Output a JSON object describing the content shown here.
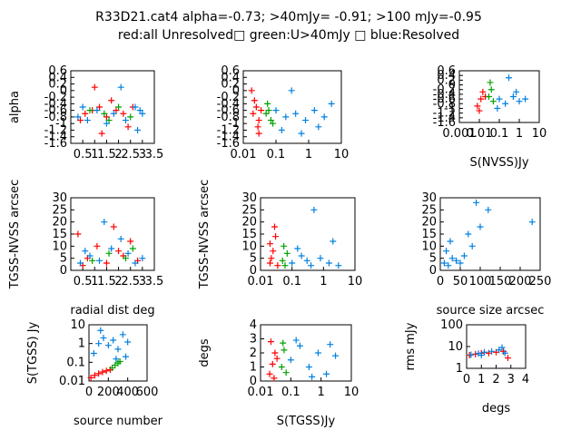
{
  "title_line1": "R33D21.cat4 alpha=-0.73; >40mJy= -0.91; >100 mJy=-0.95",
  "title_line2": "red:all Unresolved□ green:U>40mJy □ blue:Resolved",
  "colors": {
    "red": "#ff0000",
    "green": "#00a000",
    "blue": "#0080e0",
    "brown": "#a04000"
  },
  "chart_data": [
    {
      "type": "scatter",
      "ylabel": "alpha",
      "xlabel": "",
      "xlim": [
        0,
        3.5
      ],
      "ylim": [
        -1.6,
        0.6
      ],
      "xticks": [
        "0.5",
        "1",
        "1.5",
        "2",
        "2.5",
        "3",
        "3.5"
      ],
      "yticks": [
        "-1.6",
        "-1.4",
        "-1.2",
        "-1",
        "-0.8",
        "-0.6",
        "-0.4",
        "-0.2",
        "0",
        "0.2",
        "0.4",
        "0.6"
      ],
      "series": [
        {
          "color": "red",
          "points": [
            [
              0.6,
              -0.7
            ],
            [
              0.9,
              -0.6
            ],
            [
              1.2,
              -0.5
            ],
            [
              1.5,
              -0.8
            ],
            [
              1.9,
              -0.6
            ],
            [
              2.2,
              -0.7
            ],
            [
              2.6,
              -0.5
            ],
            [
              0.4,
              -0.9
            ],
            [
              1.0,
              0.1
            ],
            [
              1.7,
              -0.3
            ],
            [
              2.4,
              -1.1
            ],
            [
              1.3,
              -1.3
            ]
          ]
        },
        {
          "color": "green",
          "points": [
            [
              0.8,
              -0.6
            ],
            [
              1.4,
              -0.7
            ],
            [
              2.0,
              -0.5
            ],
            [
              2.5,
              -0.8
            ],
            [
              1.6,
              -0.9
            ]
          ]
        },
        {
          "color": "blue",
          "points": [
            [
              0.3,
              -0.8
            ],
            [
              0.7,
              -0.9
            ],
            [
              1.1,
              -0.6
            ],
            [
              1.8,
              -0.7
            ],
            [
              2.3,
              -0.9
            ],
            [
              2.7,
              -0.5
            ],
            [
              2.9,
              -0.6
            ],
            [
              2.1,
              0.1
            ],
            [
              1.5,
              -1.0
            ],
            [
              2.8,
              -1.2
            ],
            [
              0.5,
              -0.5
            ],
            [
              3.0,
              -0.7
            ]
          ]
        }
      ]
    },
    {
      "type": "scatter",
      "ylabel": "",
      "xlabel": "",
      "xlim": [
        0.01,
        10
      ],
      "ylim": [
        -1.6,
        0.6
      ],
      "xscale": "log",
      "xticks": [
        "0.01",
        "0.1",
        "1",
        "10"
      ],
      "yticks": [
        "-1.6",
        "-1.4",
        "-1.2",
        "-1",
        "-0.8",
        "-0.6",
        "-0.4",
        "-0.2",
        "0",
        "0.2",
        "0.4",
        "0.6"
      ],
      "series": [
        {
          "color": "red",
          "points": [
            [
              0.02,
              -0.7
            ],
            [
              0.025,
              -0.5
            ],
            [
              0.03,
              -0.9
            ],
            [
              0.022,
              -0.3
            ],
            [
              0.028,
              -1.1
            ],
            [
              0.035,
              -0.6
            ],
            [
              0.018,
              0.0
            ],
            [
              0.03,
              -1.3
            ]
          ]
        },
        {
          "color": "green",
          "points": [
            [
              0.05,
              -0.7
            ],
            [
              0.06,
              -0.6
            ],
            [
              0.07,
              -0.9
            ],
            [
              0.055,
              -0.4
            ],
            [
              0.08,
              -1.0
            ]
          ]
        },
        {
          "color": "blue",
          "points": [
            [
              0.1,
              -0.6
            ],
            [
              0.2,
              -0.8
            ],
            [
              0.4,
              -0.7
            ],
            [
              0.8,
              -0.9
            ],
            [
              1.5,
              -0.6
            ],
            [
              3.0,
              -0.8
            ],
            [
              0.15,
              -1.2
            ],
            [
              0.3,
              0.0
            ],
            [
              5.0,
              -0.4
            ],
            [
              0.6,
              -1.3
            ],
            [
              2.0,
              -1.1
            ]
          ]
        }
      ]
    },
    {
      "type": "scatter",
      "ylabel": "",
      "xlabel": "S(NVSS)Jy",
      "xlim": [
        0.001,
        10
      ],
      "ylim": [
        -1.6,
        0.6
      ],
      "xscale": "log",
      "xticks": [
        "0.001",
        "0.01",
        "0.1",
        "1",
        "10"
      ],
      "yticks": [
        "-1.6",
        "-1.4",
        "-1.2",
        "-1",
        "-0.8",
        "-0.6",
        "-0.4",
        "-0.2",
        "0",
        "0.2",
        "0.4",
        "0.6"
      ],
      "series": [
        {
          "color": "red",
          "points": [
            [
              0.008,
              -0.9
            ],
            [
              0.012,
              -0.6
            ],
            [
              0.015,
              -0.3
            ],
            [
              0.01,
              -1.1
            ],
            [
              0.02,
              -0.5
            ]
          ]
        },
        {
          "color": "green",
          "points": [
            [
              0.03,
              -0.5
            ],
            [
              0.04,
              -0.2
            ],
            [
              0.05,
              -0.7
            ],
            [
              0.035,
              0.1
            ]
          ]
        },
        {
          "color": "blue",
          "points": [
            [
              0.1,
              -0.6
            ],
            [
              0.2,
              -0.8
            ],
            [
              0.5,
              -0.5
            ],
            [
              1.0,
              -0.7
            ],
            [
              2.0,
              -0.6
            ],
            [
              0.3,
              0.3
            ],
            [
              0.08,
              -1.0
            ],
            [
              0.7,
              -0.3
            ]
          ]
        }
      ]
    },
    {
      "type": "scatter",
      "ylabel": "TGSS-NVSS arcsec",
      "xlabel": "radial dist deg",
      "xlim": [
        0,
        3.5
      ],
      "ylim": [
        0,
        30
      ],
      "xticks": [
        "0.5",
        "1",
        "1.5",
        "2",
        "2.5",
        "3",
        "3.5"
      ],
      "yticks": [
        "0",
        "5",
        "10",
        "15",
        "20",
        "25",
        "30"
      ],
      "series": [
        {
          "color": "red",
          "points": [
            [
              0.3,
              15
            ],
            [
              0.7,
              5
            ],
            [
              1.1,
              10
            ],
            [
              1.5,
              3
            ],
            [
              2.0,
              8
            ],
            [
              2.5,
              12
            ],
            [
              0.5,
              2
            ],
            [
              1.8,
              18
            ],
            [
              2.2,
              6
            ],
            [
              2.8,
              4
            ]
          ]
        },
        {
          "color": "green",
          "points": [
            [
              0.9,
              4
            ],
            [
              1.6,
              7
            ],
            [
              2.3,
              5
            ],
            [
              2.6,
              9
            ]
          ]
        },
        {
          "color": "blue",
          "points": [
            [
              0.4,
              3
            ],
            [
              0.8,
              6
            ],
            [
              1.2,
              4
            ],
            [
              1.7,
              9
            ],
            [
              2.1,
              13
            ],
            [
              2.4,
              7
            ],
            [
              2.7,
              3
            ],
            [
              1.4,
              20
            ],
            [
              0.6,
              8
            ],
            [
              3.0,
              5
            ]
          ]
        }
      ]
    },
    {
      "type": "scatter",
      "ylabel": "TGSS-NVSS arcsec",
      "xlabel": "",
      "xlim": [
        0.01,
        10
      ],
      "ylim": [
        0,
        30
      ],
      "xscale": "log",
      "xticks": [
        "0.01",
        "0.1",
        "1",
        "10"
      ],
      "yticks": [
        "0",
        "5",
        "10",
        "15",
        "20",
        "25",
        "30"
      ],
      "series": [
        {
          "color": "red",
          "points": [
            [
              0.02,
              3
            ],
            [
              0.025,
              8
            ],
            [
              0.03,
              14
            ],
            [
              0.022,
              5
            ],
            [
              0.028,
              18
            ],
            [
              0.035,
              2
            ],
            [
              0.02,
              11
            ]
          ]
        },
        {
          "color": "green",
          "points": [
            [
              0.05,
              4
            ],
            [
              0.06,
              2
            ],
            [
              0.07,
              7
            ],
            [
              0.055,
              10
            ]
          ]
        },
        {
          "color": "blue",
          "points": [
            [
              0.1,
              3
            ],
            [
              0.2,
              6
            ],
            [
              0.4,
              2
            ],
            [
              0.8,
              5
            ],
            [
              1.5,
              3
            ],
            [
              3.0,
              2
            ],
            [
              0.15,
              9
            ],
            [
              0.5,
              25
            ],
            [
              2.0,
              12
            ],
            [
              0.3,
              4
            ]
          ]
        }
      ]
    },
    {
      "type": "scatter",
      "ylabel": "",
      "xlabel": "source size arcsec",
      "xlim": [
        0,
        250
      ],
      "ylim": [
        0,
        30
      ],
      "xticks": [
        "0",
        "50",
        "100",
        "150",
        "200",
        "250"
      ],
      "yticks": [
        "0",
        "5",
        "10",
        "15",
        "20",
        "25",
        "30"
      ],
      "series": [
        {
          "color": "blue",
          "points": [
            [
              10,
              3
            ],
            [
              20,
              2
            ],
            [
              30,
              5
            ],
            [
              15,
              8
            ],
            [
              40,
              4
            ],
            [
              60,
              6
            ],
            [
              80,
              10
            ],
            [
              100,
              18
            ],
            [
              120,
              25
            ],
            [
              50,
              3
            ],
            [
              25,
              12
            ],
            [
              230,
              20
            ],
            [
              90,
              28
            ],
            [
              70,
              15
            ]
          ]
        }
      ]
    },
    {
      "type": "scatter",
      "ylabel": "S(TGSS) Jy",
      "xlabel": "source number",
      "xlim": [
        0,
        600
      ],
      "ylim": [
        0.01,
        10
      ],
      "yscale": "log",
      "xticks": [
        "0",
        "200",
        "400",
        "600"
      ],
      "yticks": [
        "0.01",
        "0.1",
        "1",
        "10"
      ],
      "series": [
        {
          "color": "red",
          "points": [
            [
              20,
              0.015
            ],
            [
              60,
              0.02
            ],
            [
              100,
              0.025
            ],
            [
              140,
              0.03
            ],
            [
              180,
              0.035
            ],
            [
              220,
              0.04
            ]
          ]
        },
        {
          "color": "green",
          "points": [
            [
              240,
              0.05
            ],
            [
              270,
              0.07
            ],
            [
              300,
              0.09
            ],
            [
              320,
              0.11
            ]
          ]
        },
        {
          "color": "blue",
          "points": [
            [
              50,
              0.3
            ],
            [
              100,
              1.0
            ],
            [
              150,
              2.0
            ],
            [
              200,
              0.8
            ],
            [
              250,
              1.5
            ],
            [
              300,
              0.5
            ],
            [
              350,
              3.0
            ],
            [
              400,
              1.2
            ],
            [
              380,
              0.2
            ],
            [
              120,
              5.0
            ],
            [
              280,
              0.15
            ]
          ]
        }
      ]
    },
    {
      "type": "scatter",
      "ylabel": "degs",
      "xlabel": "S(TGSS)Jy",
      "xlim": [
        0.01,
        10
      ],
      "ylim": [
        0,
        4
      ],
      "xscale": "log",
      "xticks": [
        "0.01",
        "0.1",
        "1",
        "10"
      ],
      "yticks": [
        "0",
        "1",
        "2",
        "3",
        "4"
      ],
      "series": [
        {
          "color": "red",
          "points": [
            [
              0.02,
              0.5
            ],
            [
              0.025,
              1.2
            ],
            [
              0.03,
              2.0
            ],
            [
              0.022,
              2.8
            ],
            [
              0.028,
              0.2
            ],
            [
              0.035,
              1.6
            ]
          ]
        },
        {
          "color": "green",
          "points": [
            [
              0.05,
              1.0
            ],
            [
              0.06,
              2.2
            ],
            [
              0.07,
              0.6
            ],
            [
              0.055,
              2.7
            ]
          ]
        },
        {
          "color": "blue",
          "points": [
            [
              0.1,
              1.5
            ],
            [
              0.2,
              2.5
            ],
            [
              0.4,
              1.0
            ],
            [
              0.8,
              2.0
            ],
            [
              1.5,
              0.5
            ],
            [
              3.0,
              1.8
            ],
            [
              0.15,
              2.9
            ],
            [
              0.5,
              0.3
            ],
            [
              2.0,
              2.6
            ]
          ]
        }
      ]
    },
    {
      "type": "scatter",
      "ylabel": "rms mJy",
      "xlabel": "degs",
      "xlim": [
        0,
        4
      ],
      "ylim": [
        1,
        100
      ],
      "yscale": "log",
      "xticks": [
        "0",
        "1",
        "2",
        "3",
        "4"
      ],
      "yticks": [
        "1",
        "10",
        "100"
      ],
      "series": [
        {
          "color": "red",
          "points": [
            [
              0.2,
              4
            ],
            [
              0.6,
              4.5
            ],
            [
              1.0,
              5
            ],
            [
              1.5,
              5
            ],
            [
              2.0,
              5.5
            ],
            [
              2.5,
              6
            ],
            [
              2.8,
              3
            ]
          ]
        },
        {
          "color": "blue",
          "points": [
            [
              0.3,
              4.2
            ],
            [
              0.8,
              4.8
            ],
            [
              1.2,
              5.5
            ],
            [
              1.7,
              6
            ],
            [
              2.2,
              7
            ],
            [
              2.4,
              9
            ],
            [
              2.6,
              5
            ],
            [
              1.0,
              4
            ]
          ]
        }
      ]
    }
  ]
}
